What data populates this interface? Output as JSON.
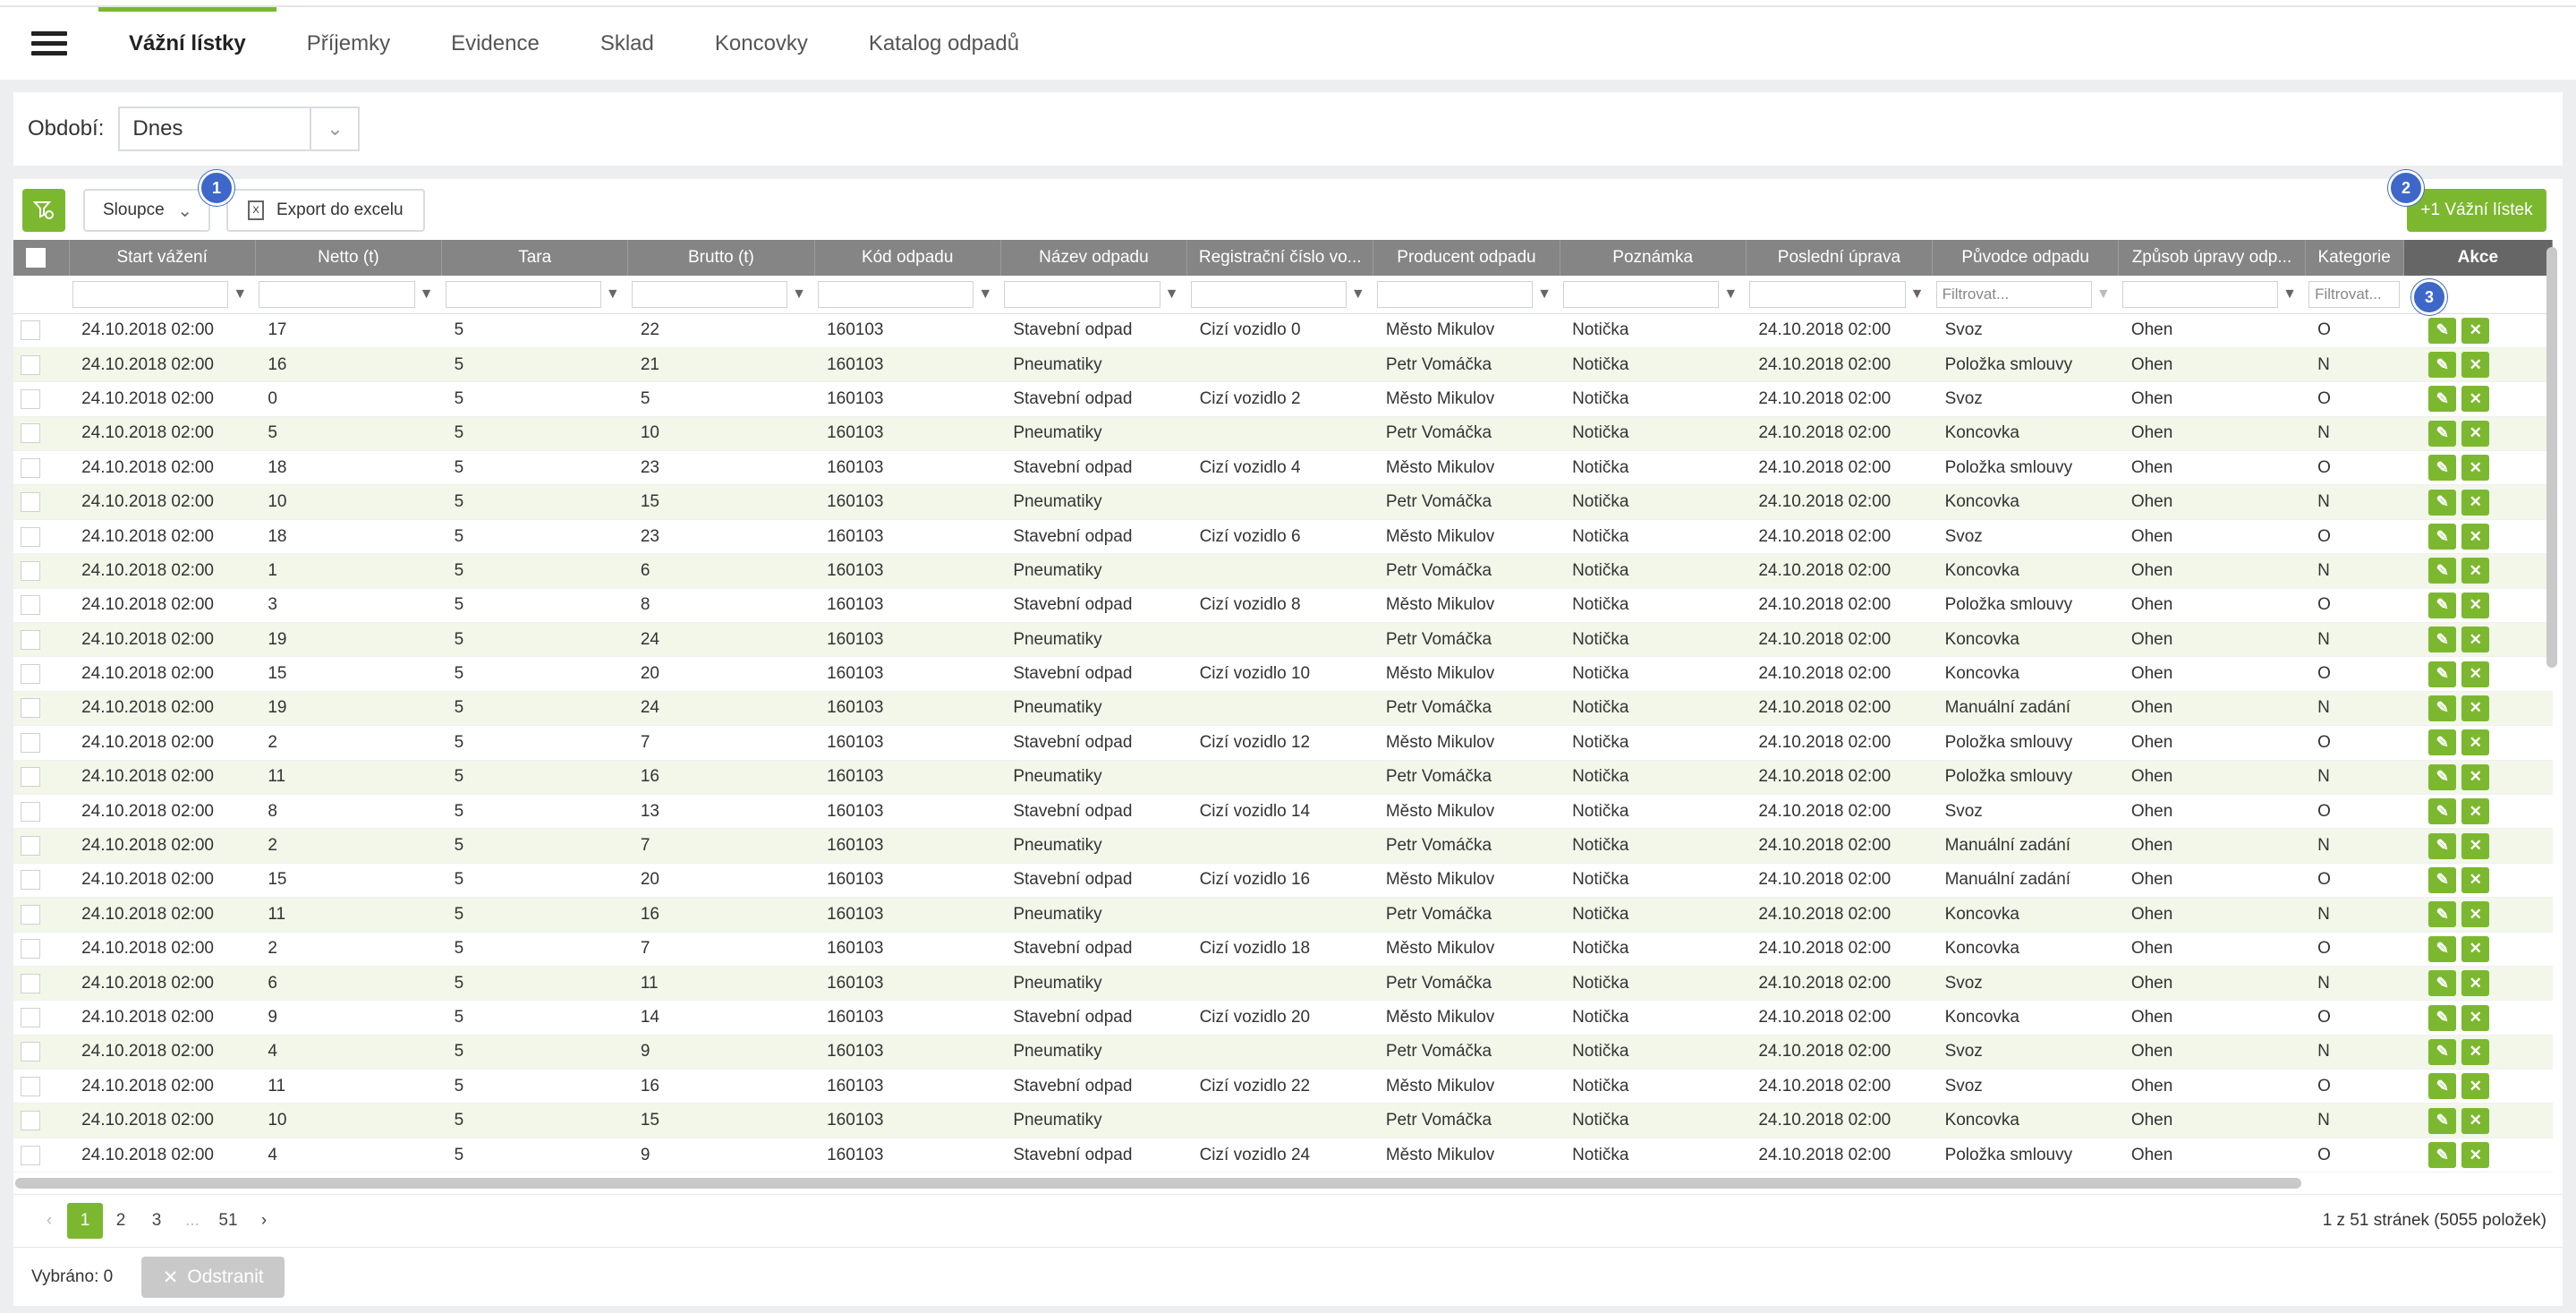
{
  "nav": {
    "tabs": [
      {
        "label": "Vážní lístky",
        "active": true
      },
      {
        "label": "Příjemky",
        "active": false
      },
      {
        "label": "Evidence",
        "active": false
      },
      {
        "label": "Sklad",
        "active": false
      },
      {
        "label": "Koncovky",
        "active": false
      },
      {
        "label": "Katalog odpadů",
        "active": false
      }
    ]
  },
  "period": {
    "label": "Období:",
    "value": "Dnes"
  },
  "toolbar": {
    "columns_label": "Sloupce",
    "export_label": "Export do excelu",
    "add_label": "+1 Vážní lístek"
  },
  "badges": [
    "1",
    "2",
    "3"
  ],
  "table": {
    "columns": [
      "Start vážení",
      "Netto (t)",
      "Tara",
      "Brutto (t)",
      "Kód odpadu",
      "Název odpadu",
      "Registrační číslo vo...",
      "Producent odpadu",
      "Poznámka",
      "Poslední úprava",
      "Původce odpadu",
      "Způsob úpravy odp...",
      "Kategorie",
      "Akce"
    ],
    "filter_placeholder": "Filtrovat...",
    "rows": [
      [
        "24.10.2018 02:00",
        "17",
        "5",
        "22",
        "160103",
        "Stavební odpad",
        "Cizí vozidlo 0",
        "Město Mikulov",
        "Notička",
        "24.10.2018 02:00",
        "Svoz",
        "Ohen",
        "O"
      ],
      [
        "24.10.2018 02:00",
        "16",
        "5",
        "21",
        "160103",
        "Pneumatiky",
        "",
        "Petr Vomáčka",
        "Notička",
        "24.10.2018 02:00",
        "Položka smlouvy",
        "Ohen",
        "N"
      ],
      [
        "24.10.2018 02:00",
        "0",
        "5",
        "5",
        "160103",
        "Stavební odpad",
        "Cizí vozidlo 2",
        "Město Mikulov",
        "Notička",
        "24.10.2018 02:00",
        "Svoz",
        "Ohen",
        "O"
      ],
      [
        "24.10.2018 02:00",
        "5",
        "5",
        "10",
        "160103",
        "Pneumatiky",
        "",
        "Petr Vomáčka",
        "Notička",
        "24.10.2018 02:00",
        "Koncovka",
        "Ohen",
        "N"
      ],
      [
        "24.10.2018 02:00",
        "18",
        "5",
        "23",
        "160103",
        "Stavební odpad",
        "Cizí vozidlo 4",
        "Město Mikulov",
        "Notička",
        "24.10.2018 02:00",
        "Položka smlouvy",
        "Ohen",
        "O"
      ],
      [
        "24.10.2018 02:00",
        "10",
        "5",
        "15",
        "160103",
        "Pneumatiky",
        "",
        "Petr Vomáčka",
        "Notička",
        "24.10.2018 02:00",
        "Koncovka",
        "Ohen",
        "N"
      ],
      [
        "24.10.2018 02:00",
        "18",
        "5",
        "23",
        "160103",
        "Stavební odpad",
        "Cizí vozidlo 6",
        "Město Mikulov",
        "Notička",
        "24.10.2018 02:00",
        "Svoz",
        "Ohen",
        "O"
      ],
      [
        "24.10.2018 02:00",
        "1",
        "5",
        "6",
        "160103",
        "Pneumatiky",
        "",
        "Petr Vomáčka",
        "Notička",
        "24.10.2018 02:00",
        "Koncovka",
        "Ohen",
        "N"
      ],
      [
        "24.10.2018 02:00",
        "3",
        "5",
        "8",
        "160103",
        "Stavební odpad",
        "Cizí vozidlo 8",
        "Město Mikulov",
        "Notička",
        "24.10.2018 02:00",
        "Položka smlouvy",
        "Ohen",
        "O"
      ],
      [
        "24.10.2018 02:00",
        "19",
        "5",
        "24",
        "160103",
        "Pneumatiky",
        "",
        "Petr Vomáčka",
        "Notička",
        "24.10.2018 02:00",
        "Koncovka",
        "Ohen",
        "N"
      ],
      [
        "24.10.2018 02:00",
        "15",
        "5",
        "20",
        "160103",
        "Stavební odpad",
        "Cizí vozidlo 10",
        "Město Mikulov",
        "Notička",
        "24.10.2018 02:00",
        "Koncovka",
        "Ohen",
        "O"
      ],
      [
        "24.10.2018 02:00",
        "19",
        "5",
        "24",
        "160103",
        "Pneumatiky",
        "",
        "Petr Vomáčka",
        "Notička",
        "24.10.2018 02:00",
        "Manuální zadání",
        "Ohen",
        "N"
      ],
      [
        "24.10.2018 02:00",
        "2",
        "5",
        "7",
        "160103",
        "Stavební odpad",
        "Cizí vozidlo 12",
        "Město Mikulov",
        "Notička",
        "24.10.2018 02:00",
        "Položka smlouvy",
        "Ohen",
        "O"
      ],
      [
        "24.10.2018 02:00",
        "11",
        "5",
        "16",
        "160103",
        "Pneumatiky",
        "",
        "Petr Vomáčka",
        "Notička",
        "24.10.2018 02:00",
        "Položka smlouvy",
        "Ohen",
        "N"
      ],
      [
        "24.10.2018 02:00",
        "8",
        "5",
        "13",
        "160103",
        "Stavební odpad",
        "Cizí vozidlo 14",
        "Město Mikulov",
        "Notička",
        "24.10.2018 02:00",
        "Svoz",
        "Ohen",
        "O"
      ],
      [
        "24.10.2018 02:00",
        "2",
        "5",
        "7",
        "160103",
        "Pneumatiky",
        "",
        "Petr Vomáčka",
        "Notička",
        "24.10.2018 02:00",
        "Manuální zadání",
        "Ohen",
        "N"
      ],
      [
        "24.10.2018 02:00",
        "15",
        "5",
        "20",
        "160103",
        "Stavební odpad",
        "Cizí vozidlo 16",
        "Město Mikulov",
        "Notička",
        "24.10.2018 02:00",
        "Manuální zadání",
        "Ohen",
        "O"
      ],
      [
        "24.10.2018 02:00",
        "11",
        "5",
        "16",
        "160103",
        "Pneumatiky",
        "",
        "Petr Vomáčka",
        "Notička",
        "24.10.2018 02:00",
        "Koncovka",
        "Ohen",
        "N"
      ],
      [
        "24.10.2018 02:00",
        "2",
        "5",
        "7",
        "160103",
        "Stavební odpad",
        "Cizí vozidlo 18",
        "Město Mikulov",
        "Notička",
        "24.10.2018 02:00",
        "Koncovka",
        "Ohen",
        "O"
      ],
      [
        "24.10.2018 02:00",
        "6",
        "5",
        "11",
        "160103",
        "Pneumatiky",
        "",
        "Petr Vomáčka",
        "Notička",
        "24.10.2018 02:00",
        "Svoz",
        "Ohen",
        "N"
      ],
      [
        "24.10.2018 02:00",
        "9",
        "5",
        "14",
        "160103",
        "Stavební odpad",
        "Cizí vozidlo 20",
        "Město Mikulov",
        "Notička",
        "24.10.2018 02:00",
        "Koncovka",
        "Ohen",
        "O"
      ],
      [
        "24.10.2018 02:00",
        "4",
        "5",
        "9",
        "160103",
        "Pneumatiky",
        "",
        "Petr Vomáčka",
        "Notička",
        "24.10.2018 02:00",
        "Svoz",
        "Ohen",
        "N"
      ],
      [
        "24.10.2018 02:00",
        "11",
        "5",
        "16",
        "160103",
        "Stavební odpad",
        "Cizí vozidlo 22",
        "Město Mikulov",
        "Notička",
        "24.10.2018 02:00",
        "Svoz",
        "Ohen",
        "O"
      ],
      [
        "24.10.2018 02:00",
        "10",
        "5",
        "15",
        "160103",
        "Pneumatiky",
        "",
        "Petr Vomáčka",
        "Notička",
        "24.10.2018 02:00",
        "Koncovka",
        "Ohen",
        "N"
      ],
      [
        "24.10.2018 02:00",
        "4",
        "5",
        "9",
        "160103",
        "Stavební odpad",
        "Cizí vozidlo 24",
        "Město Mikulov",
        "Notička",
        "24.10.2018 02:00",
        "Položka smlouvy",
        "Ohen",
        "O"
      ]
    ]
  },
  "pager": {
    "pages": [
      "1",
      "2",
      "3",
      "...",
      "51"
    ],
    "current": "1",
    "info": "1 z 51 stránek (5055 položek)"
  },
  "footer": {
    "selected_label": "Vybráno: 0",
    "delete_label": "Odstranit"
  },
  "colors": {
    "accent": "#7cb82f",
    "header_bg": "#858585",
    "badge": "#3d68c9",
    "row_alt": "#f2f7ea"
  }
}
